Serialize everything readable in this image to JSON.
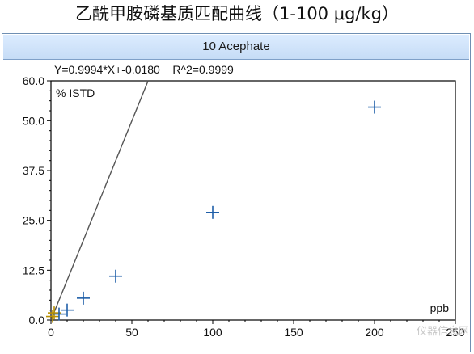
{
  "caption": "乙酰甲胺磷基质匹配曲线（1-100 μg/kg）",
  "panel": {
    "title": "10 Acephate",
    "equation": "Y=0.9994*X+-0.0180    R^2=0.9999",
    "y_label": "% ISTD",
    "x_unit": "ppb"
  },
  "colors": {
    "panel_border": "#6f8fb3",
    "title_bg": "#c6dcf6",
    "line": "#555555",
    "marker": "#1f5fa8",
    "origin_marker": "#b89000"
  },
  "watermark": "仪器信息网",
  "chart_data": {
    "type": "scatter",
    "x": [
      1,
      2,
      5,
      10,
      20,
      40,
      100,
      200
    ],
    "y": [
      0.9,
      1.8,
      1.5,
      2.5,
      5.5,
      11.0,
      27.0,
      53.4
    ],
    "fit": {
      "slope": 0.9994,
      "intercept": -0.018,
      "r2": 0.9999
    },
    "xlim": [
      0,
      250
    ],
    "ylim": [
      0,
      60
    ],
    "xticks": [
      "0",
      "50",
      "100",
      "150",
      "200",
      "250"
    ],
    "yticks": [
      "0.0",
      "12.5",
      "25.0",
      "37.5",
      "50.0",
      "60.0"
    ],
    "ytick_values": [
      0,
      12.5,
      25,
      37.5,
      50,
      60
    ],
    "xtick_values": [
      0,
      50,
      100,
      150,
      200,
      250
    ],
    "grid": false
  }
}
